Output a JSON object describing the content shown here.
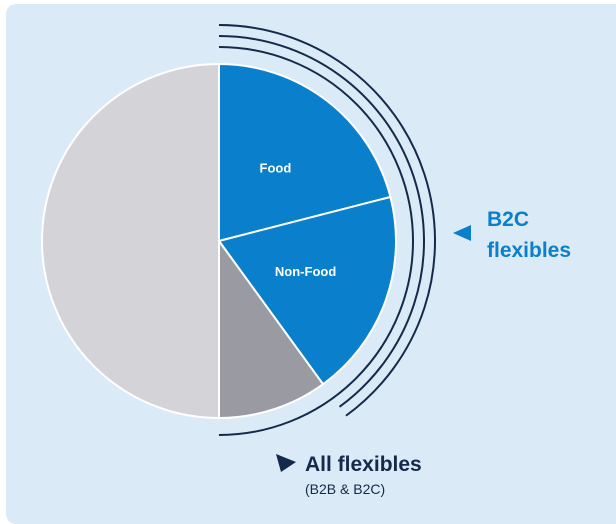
{
  "chart_data": {
    "type": "pie",
    "slices": [
      {
        "label": "Food",
        "value": 21
      },
      {
        "label": "Non-Food",
        "value": 19
      },
      {
        "label": "",
        "value": 10
      },
      {
        "label": "",
        "value": 50
      }
    ],
    "annotations": {
      "b2c_line1": "B2C",
      "b2c_line2": "flexibles",
      "all_line1": "All flexibles",
      "all_line2": "(B2B & B2C)"
    }
  },
  "colors": {
    "panel_background": "#dbeaf7",
    "b2c_blue": "#0a7fcb",
    "b2b_gray": "#9a9ba2",
    "other_light_gray": "#d4d4d8",
    "dark_navy": "#142a4a"
  }
}
